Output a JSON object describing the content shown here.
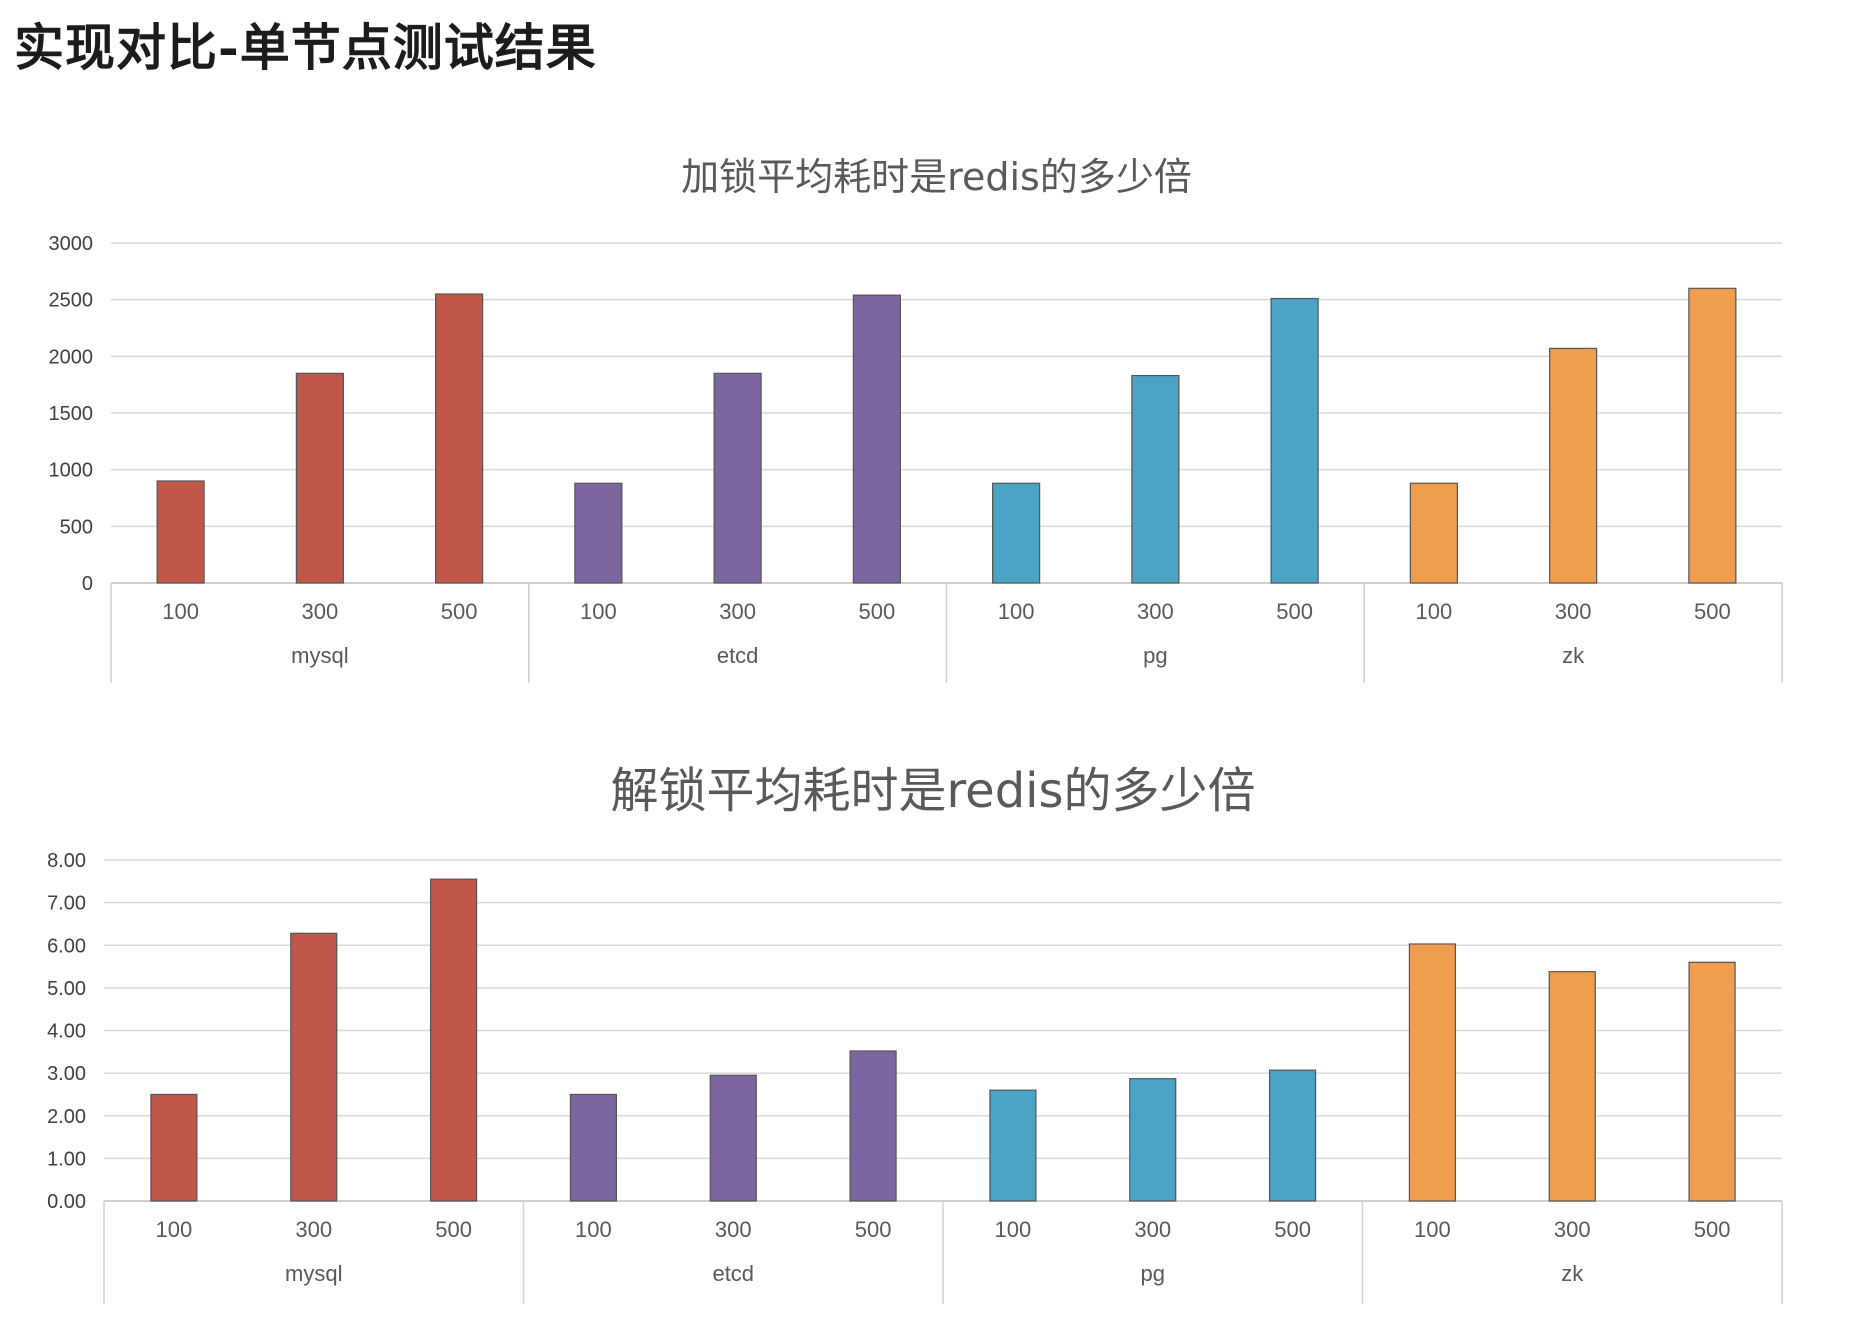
{
  "slide_title": "实现对比-单节点测试结果",
  "colors": {
    "mysql": "#c0574a",
    "etcd": "#7b66a0",
    "pg": "#4ba3c6",
    "zk": "#f09e4e"
  },
  "chart_data": [
    {
      "type": "bar",
      "title": "加锁平均耗时是redis的多少倍",
      "groups": [
        "mysql",
        "etcd",
        "pg",
        "zk"
      ],
      "categories": [
        "100",
        "300",
        "500"
      ],
      "series": [
        {
          "values": [
            900,
            1850,
            2550
          ]
        },
        {
          "values": [
            880,
            1850,
            2540
          ]
        },
        {
          "values": [
            880,
            1830,
            2510
          ]
        },
        {
          "values": [
            880,
            2070,
            2600
          ]
        }
      ],
      "ylim": [
        0,
        3000
      ],
      "yticks": [
        "0",
        "500",
        "1000",
        "1500",
        "2000",
        "2500",
        "3000"
      ],
      "grid": true
    },
    {
      "type": "bar",
      "title": "解锁平均耗时是redis的多少倍",
      "groups": [
        "mysql",
        "etcd",
        "pg",
        "zk"
      ],
      "categories": [
        "100",
        "300",
        "500"
      ],
      "series": [
        {
          "values": [
            2.5,
            6.28,
            7.55
          ]
        },
        {
          "values": [
            2.5,
            2.95,
            3.52
          ]
        },
        {
          "values": [
            2.6,
            2.87,
            3.07
          ]
        },
        {
          "values": [
            6.03,
            5.38,
            5.6
          ]
        }
      ],
      "ylim": [
        0,
        8
      ],
      "yticks": [
        "0.00",
        "1.00",
        "2.00",
        "3.00",
        "4.00",
        "5.00",
        "6.00",
        "7.00",
        "8.00"
      ],
      "grid": true
    }
  ]
}
